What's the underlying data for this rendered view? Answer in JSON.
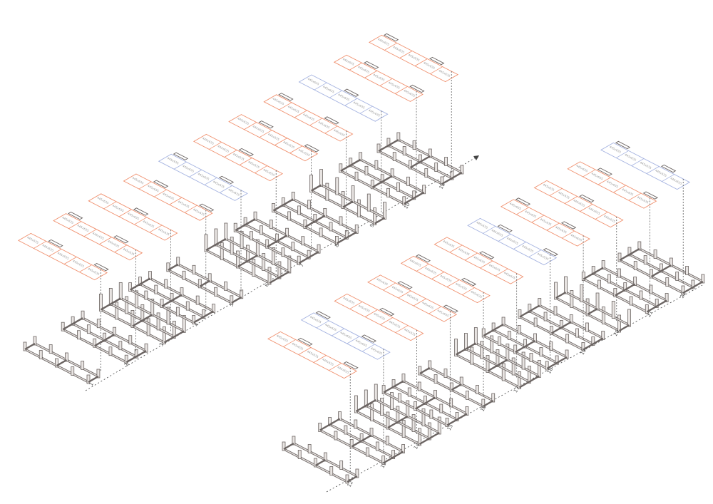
{
  "colors": {
    "standard": "#f0906e",
    "highlight": "#a4b2e0",
    "structure": "#6b6462",
    "axis": "#444444"
  },
  "cell_label": "445x635",
  "rows": [
    {
      "stations": [
        {
          "label": "1",
          "type": "standard"
        },
        {
          "label": "2",
          "type": "standard"
        },
        {
          "label": "3",
          "type": "standard"
        },
        {
          "label": "4",
          "type": "standard"
        },
        {
          "label": "5",
          "type": "highlight"
        },
        {
          "label": "6",
          "type": "standard"
        },
        {
          "label": "7",
          "type": "standard"
        },
        {
          "label": "8",
          "type": "standard"
        },
        {
          "label": "9",
          "type": "highlight"
        },
        {
          "label": "10",
          "type": "standard"
        },
        {
          "label": "11",
          "type": "standard"
        }
      ]
    },
    {
      "stations": [
        {
          "label": "12",
          "type": "standard"
        },
        {
          "label": "13",
          "type": "highlight"
        },
        {
          "label": "14",
          "type": "standard"
        },
        {
          "label": "15",
          "type": "standard"
        },
        {
          "label": "16",
          "type": "standard"
        },
        {
          "label": "17",
          "type": "standard"
        },
        {
          "label": "18",
          "type": "highlight"
        },
        {
          "label": "19",
          "type": "standard"
        },
        {
          "label": "20",
          "type": "standard"
        },
        {
          "label": "21",
          "type": "standard"
        },
        {
          "label": "22",
          "type": "highlight"
        }
      ]
    }
  ]
}
